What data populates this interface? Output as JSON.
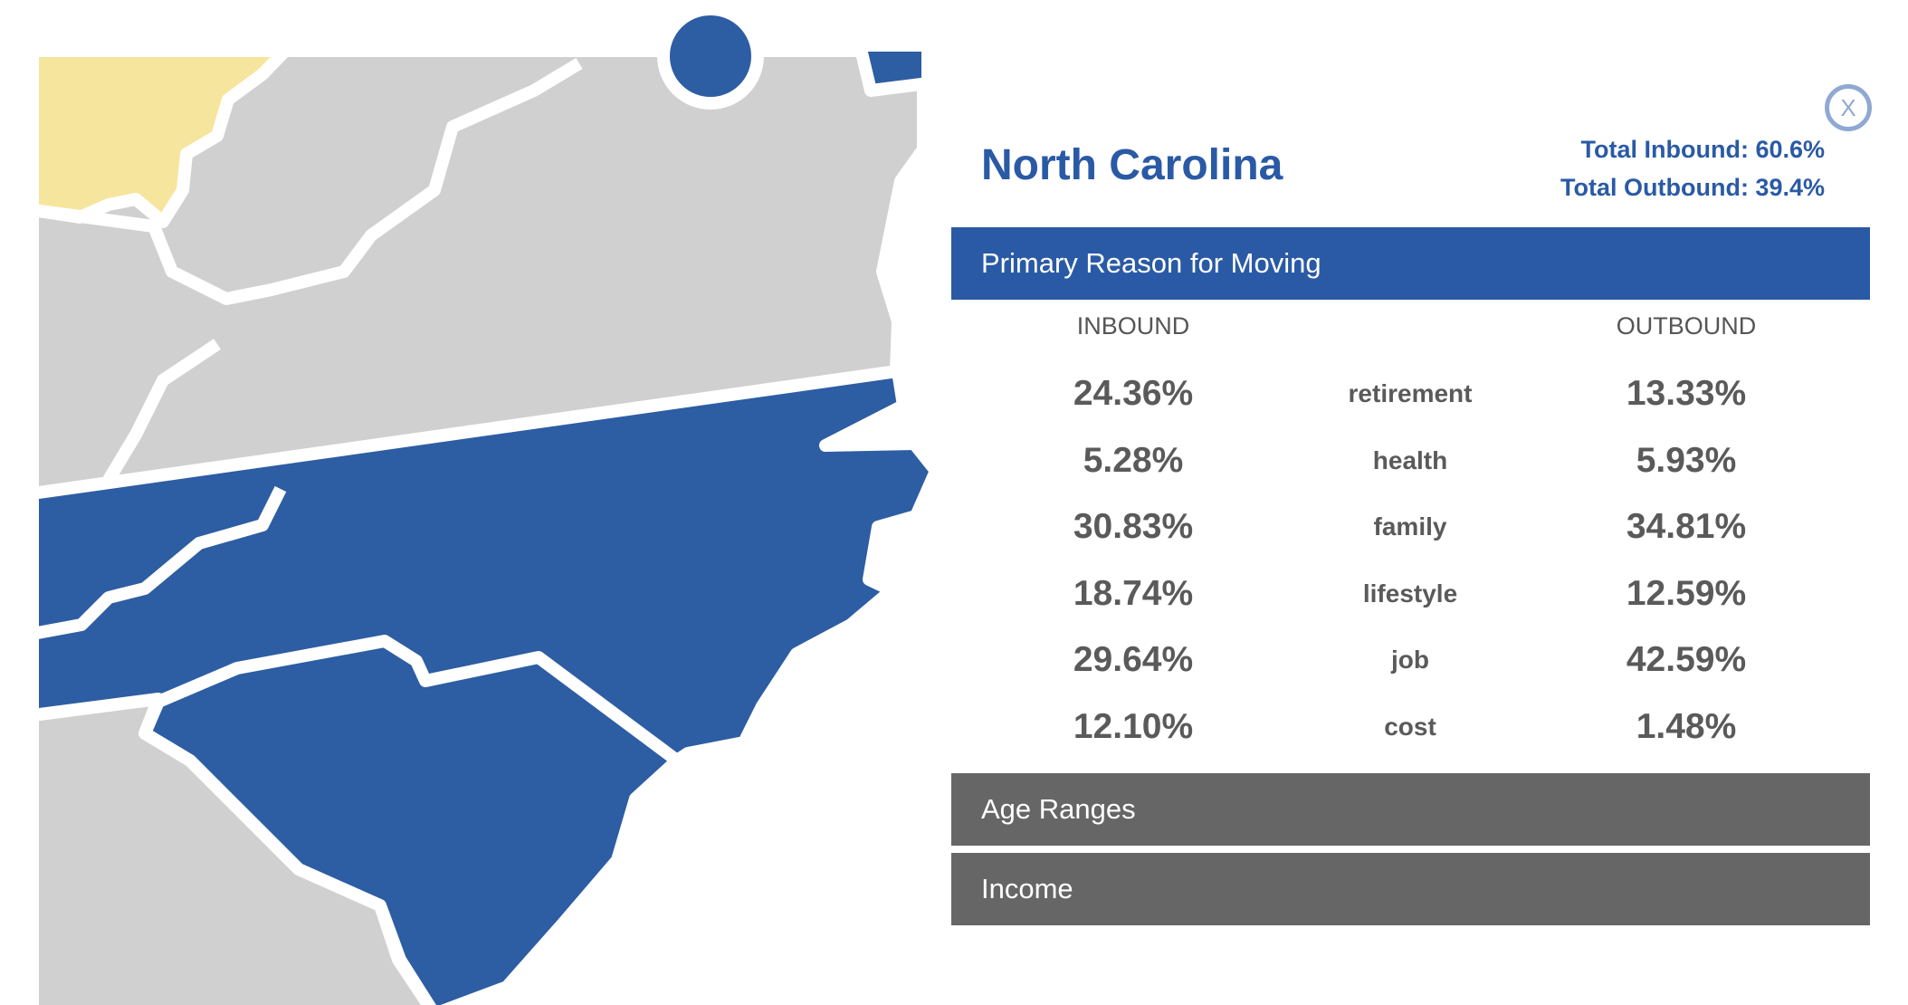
{
  "header": {
    "title": "North Carolina",
    "total_inbound": "Total Inbound: 60.6%",
    "total_outbound": "Total Outbound: 39.4%",
    "close": "X"
  },
  "sections": [
    {
      "title": "Primary Reason for Moving",
      "table": {
        "columns": [
          "INBOUND",
          "OUTBOUND"
        ],
        "rows": [
          [
            "24.36%",
            "retirement",
            "13.33%"
          ],
          [
            "5.28%",
            "health",
            "5.93%"
          ],
          [
            "30.83%",
            "family",
            "34.81%"
          ],
          [
            "18.74%",
            "lifestyle",
            "12.59%"
          ],
          [
            "29.64%",
            "job",
            "42.59%"
          ],
          [
            "12.10%",
            "cost",
            "1.48%"
          ]
        ]
      }
    },
    {
      "title": "Age Ranges"
    },
    {
      "title": "Income"
    }
  ]
}
